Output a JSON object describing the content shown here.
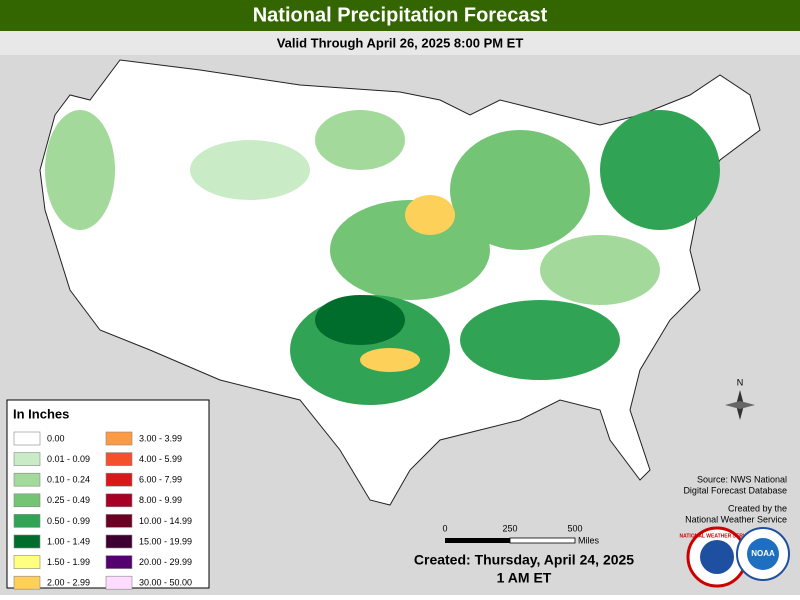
{
  "header": {
    "title": "National Precipitation Forecast",
    "subtitle": "Valid Through April 26, 2025 8:00 PM ET"
  },
  "legend": {
    "title": "In Inches",
    "items": [
      {
        "label": "0.00",
        "color": "#ffffff"
      },
      {
        "label": "0.01 - 0.09",
        "color": "#c9ebc5"
      },
      {
        "label": "0.10 - 0.24",
        "color": "#a3d99b"
      },
      {
        "label": "0.25 - 0.49",
        "color": "#74c476"
      },
      {
        "label": "0.50 - 0.99",
        "color": "#31a354"
      },
      {
        "label": "1.00 - 1.49",
        "color": "#006d2c"
      },
      {
        "label": "1.50 - 1.99",
        "color": "#ffff80"
      },
      {
        "label": "2.00 - 2.99",
        "color": "#fdd05a"
      },
      {
        "label": "3.00 - 3.99",
        "color": "#fd9a44"
      },
      {
        "label": "4.00 - 5.99",
        "color": "#f4502c"
      },
      {
        "label": "6.00 - 7.99",
        "color": "#d7191c"
      },
      {
        "label": "8.00 - 9.99",
        "color": "#a50026"
      },
      {
        "label": "10.00 - 14.99",
        "color": "#6b0022"
      },
      {
        "label": "15.00 - 19.99",
        "color": "#3d0030"
      },
      {
        "label": "20.00 - 29.99",
        "color": "#54006e"
      },
      {
        "label": "30.00 - 50.00",
        "color": "#ffdcff"
      }
    ]
  },
  "scale": {
    "labels": [
      "0",
      "250",
      "500"
    ],
    "unit": "Miles"
  },
  "compass": "N",
  "source": {
    "line1": "Source: NWS National",
    "line2": "Digital Forecast Database",
    "line3": "Created by the",
    "line4": "National Weather Service"
  },
  "footer": {
    "created": "Created: Thursday, April 24, 2025",
    "time": "1 AM ET"
  },
  "logos": {
    "nws": "NATIONAL WEATHER SERVICE",
    "noaa": "NOAA"
  }
}
